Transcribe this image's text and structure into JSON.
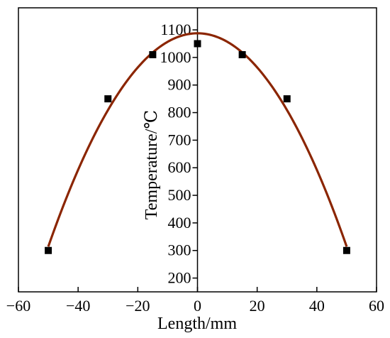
{
  "chart_data": {
    "type": "line",
    "title": "",
    "xlabel": "Length/mm",
    "ylabel": "Temperature/℃",
    "xlim": [
      -60,
      60
    ],
    "ylim": [
      150,
      1180
    ],
    "x_ticks": [
      -60,
      -40,
      -20,
      0,
      20,
      40,
      60
    ],
    "y_ticks": [
      200,
      300,
      400,
      500,
      600,
      700,
      800,
      900,
      1000,
      1100
    ],
    "grid": false,
    "legend": "none",
    "series": [
      {
        "x": [
          -50,
          -30,
          -15,
          0,
          15,
          30,
          50
        ],
        "y": [
          300,
          850,
          1010,
          1050,
          1010,
          850,
          300
        ],
        "line_color": "#8b2500",
        "marker": "square",
        "marker_color": "#000000"
      }
    ]
  }
}
